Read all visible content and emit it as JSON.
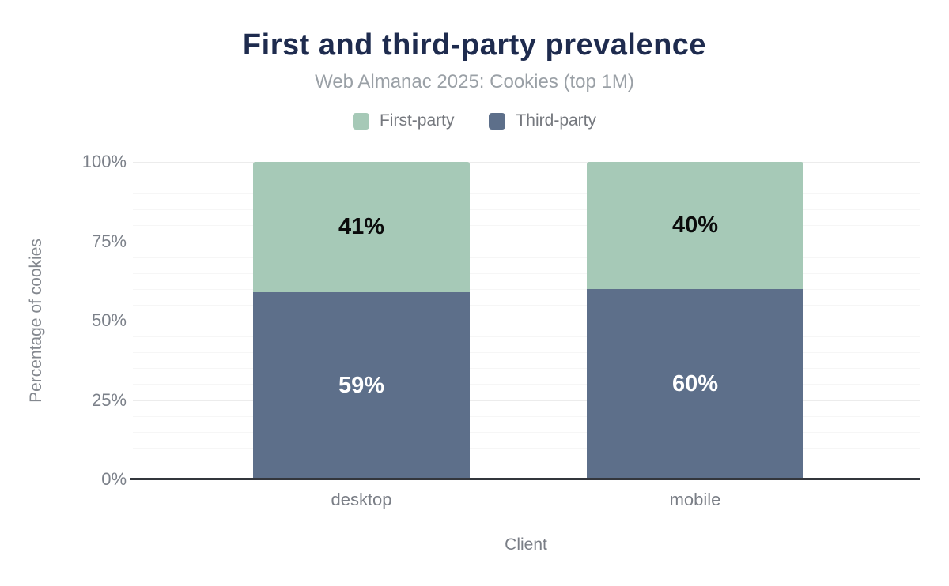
{
  "title": "First and third-party prevalence",
  "subtitle": "Web Almanac 2025: Cookies (top 1M)",
  "legend": [
    {
      "label": "First-party",
      "color": "#a6c9b7"
    },
    {
      "label": "Third-party",
      "color": "#5d6f8a"
    }
  ],
  "chart_data": {
    "type": "bar",
    "stacked": true,
    "categories": [
      "desktop",
      "mobile"
    ],
    "series": [
      {
        "name": "First-party",
        "color": "#a6c9b7",
        "values": [
          41,
          40
        ],
        "label_color": "#0b0b0b"
      },
      {
        "name": "Third-party",
        "color": "#5d6f8a",
        "values": [
          59,
          60
        ],
        "label_color": "#ffffff"
      }
    ],
    "value_suffix": "%",
    "xlabel": "Client",
    "ylabel": "Percentage of cookies",
    "ylim": [
      0,
      100
    ],
    "yticks": [
      0,
      25,
      50,
      75,
      100
    ],
    "ytick_suffix": "%",
    "grid": "horizontal minor every 5, major every 25",
    "legend_position": "top"
  },
  "colors": {
    "title": "#1e2b4e",
    "subtitle": "#9aa0a6",
    "axis_line": "#33363c",
    "tick_text": "#7b8089",
    "grid_minor": "#f6f6f6",
    "grid_major": "#ececec"
  }
}
